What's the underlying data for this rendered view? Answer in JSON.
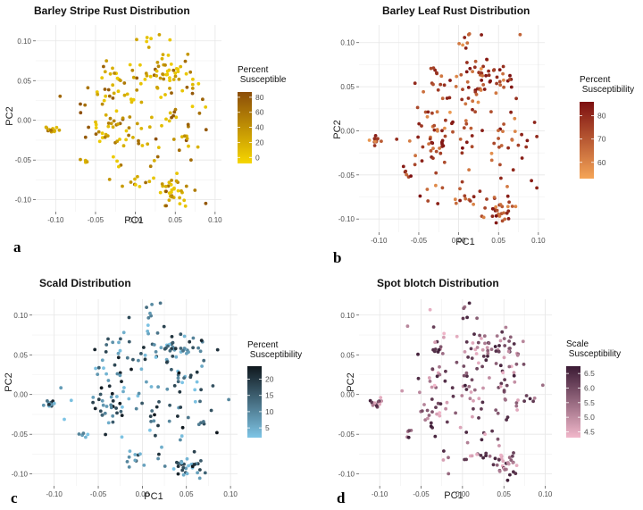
{
  "chart_data": [
    {
      "type": "scatter",
      "panel_letter": "a",
      "title": "Barley Stripe Rust Distribution",
      "xlabel": "PC1",
      "ylabel": "PC2",
      "xlim": [
        -0.125,
        0.108
      ],
      "ylim": [
        -0.115,
        0.12
      ],
      "xticks": [
        "-0.10",
        "-0.05",
        "0.00",
        "0.05",
        "0.10"
      ],
      "xtick_values": [
        -0.1,
        -0.05,
        0.0,
        0.05,
        0.1
      ],
      "yticks": [
        "-0.10",
        "-0.05",
        "0.00",
        "0.05",
        "0.10"
      ],
      "ytick_values": [
        -0.1,
        -0.05,
        0.0,
        0.05,
        0.1
      ],
      "grid": true,
      "legend": {
        "title_line1": "Percent",
        "title_line2": " Susceptible",
        "ticks": [
          "80",
          "60",
          "40",
          "20",
          "0"
        ],
        "tick_values": [
          80,
          60,
          40,
          20,
          0
        ],
        "range": [
          -8,
          87
        ],
        "color_low": "#f6d600",
        "color_high": "#8b4d09",
        "placement": "right"
      },
      "seed": 11,
      "value_range": [
        0,
        85
      ],
      "value_bias": 1.8
    },
    {
      "type": "scatter",
      "panel_letter": "b",
      "title": "Barley Leaf Rust Distribution",
      "xlabel": "PC1",
      "ylabel": "PC2",
      "xlim": [
        -0.125,
        0.108
      ],
      "ylim": [
        -0.115,
        0.12
      ],
      "xticks": [
        "-0.10",
        "-0.05",
        "0.00",
        "0.05",
        "0.10"
      ],
      "xtick_values": [
        -0.1,
        -0.05,
        0.0,
        0.05,
        0.1
      ],
      "yticks": [
        "-0.10",
        "-0.05",
        "0.00",
        "0.05",
        "0.10"
      ],
      "ytick_values": [
        -0.1,
        -0.05,
        0.0,
        0.05,
        0.1
      ],
      "grid": true,
      "legend": {
        "title_line1": "Percent",
        "title_line2": " Susceptibility",
        "ticks": [
          "80",
          "70",
          "60"
        ],
        "tick_values": [
          80,
          70,
          60
        ],
        "range": [
          53,
          86
        ],
        "color_low": "#f5a557",
        "color_high": "#7c0f10",
        "placement": "right"
      },
      "seed": 23,
      "value_range": [
        55,
        86
      ],
      "value_bias": 0.7
    },
    {
      "type": "scatter",
      "panel_letter": "c",
      "title": "Scald Distribution",
      "xlabel": "PC1",
      "ylabel": "PC2",
      "xlim": [
        -0.125,
        0.108
      ],
      "ylim": [
        -0.115,
        0.12
      ],
      "xticks": [
        "-0.10",
        "-0.05",
        "0.00",
        "0.05",
        "0.10"
      ],
      "xtick_values": [
        -0.1,
        -0.05,
        0.0,
        0.05,
        0.1
      ],
      "yticks": [
        "-0.10",
        "-0.05",
        "0.00",
        "0.05",
        "0.10"
      ],
      "ytick_values": [
        -0.1,
        -0.05,
        0.0,
        0.05,
        0.1
      ],
      "grid": true,
      "legend": {
        "title_line1": "Percent",
        "title_line2": " Susceptibility",
        "ticks": [
          "20",
          "15",
          "10",
          "5"
        ],
        "tick_values": [
          20,
          15,
          10,
          5
        ],
        "range": [
          2,
          24
        ],
        "color_low": "#7ec5e6",
        "color_high": "#0f171d",
        "placement": "right"
      },
      "seed": 37,
      "value_range": [
        2,
        24
      ],
      "value_bias": 1.1
    },
    {
      "type": "scatter",
      "panel_letter": "d",
      "title": "Spot blotch Distribution",
      "xlabel": "PC1",
      "ylabel": "PC2",
      "xlim": [
        -0.125,
        0.108
      ],
      "ylim": [
        -0.115,
        0.12
      ],
      "xticks": [
        "-0.10",
        "-0.05",
        "0.00",
        "0.05",
        "0.10"
      ],
      "xtick_values": [
        -0.1,
        -0.05,
        0.0,
        0.05,
        0.1
      ],
      "yticks": [
        "-0.10",
        "-0.05",
        "0.00",
        "0.05",
        "0.10"
      ],
      "ytick_values": [
        -0.1,
        -0.05,
        0.0,
        0.05,
        0.1
      ],
      "grid": true,
      "legend": {
        "title_line1": "Scale",
        "title_line2": " Susceptibility",
        "ticks": [
          "6.5",
          "6.0",
          "5.5",
          "5.0",
          "4.5"
        ],
        "tick_values": [
          6.5,
          6.0,
          5.5,
          5.0,
          4.5
        ],
        "range": [
          4.3,
          6.75
        ],
        "color_low": "#f2b8cb",
        "color_high": "#3b1a34",
        "placement": "right"
      },
      "seed": 51,
      "value_range": [
        4.3,
        6.7
      ],
      "value_bias": 0.9
    }
  ]
}
